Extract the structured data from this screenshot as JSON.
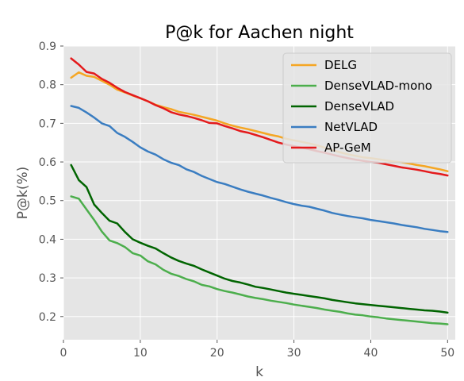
{
  "chart_data": {
    "type": "line",
    "title": "P@k for Aachen night",
    "xlabel": "k",
    "ylabel": "P@k(%)",
    "xlim": [
      0,
      51
    ],
    "ylim": [
      0.14,
      0.9
    ],
    "xticks": [
      0,
      10,
      20,
      30,
      40,
      50
    ],
    "yticks": [
      0.2,
      0.3,
      0.4,
      0.5,
      0.6,
      0.7,
      0.8,
      0.9
    ],
    "grid": true,
    "legend_position": "upper-right",
    "x": [
      1,
      2,
      3,
      4,
      5,
      6,
      7,
      8,
      9,
      10,
      11,
      12,
      13,
      14,
      15,
      16,
      17,
      18,
      19,
      20,
      21,
      22,
      23,
      24,
      25,
      26,
      27,
      28,
      29,
      30,
      31,
      32,
      33,
      34,
      35,
      36,
      37,
      38,
      39,
      40,
      41,
      42,
      43,
      44,
      45,
      46,
      47,
      48,
      49,
      50
    ],
    "series": [
      {
        "name": "DELG",
        "color": "#f5a623",
        "values": [
          0.818,
          0.832,
          0.823,
          0.82,
          0.81,
          0.8,
          0.787,
          0.78,
          0.772,
          0.765,
          0.757,
          0.748,
          0.742,
          0.737,
          0.73,
          0.726,
          0.722,
          0.717,
          0.712,
          0.707,
          0.7,
          0.694,
          0.689,
          0.685,
          0.68,
          0.675,
          0.67,
          0.666,
          0.66,
          0.656,
          0.652,
          0.648,
          0.643,
          0.637,
          0.631,
          0.625,
          0.62,
          0.616,
          0.612,
          0.61,
          0.607,
          0.604,
          0.601,
          0.599,
          0.596,
          0.592,
          0.589,
          0.585,
          0.581,
          0.576
        ]
      },
      {
        "name": "DenseVLAD-mono",
        "color": "#4cae4c",
        "values": [
          0.511,
          0.505,
          0.477,
          0.45,
          0.42,
          0.397,
          0.39,
          0.38,
          0.364,
          0.358,
          0.343,
          0.335,
          0.321,
          0.311,
          0.305,
          0.297,
          0.291,
          0.282,
          0.278,
          0.271,
          0.266,
          0.262,
          0.257,
          0.252,
          0.248,
          0.245,
          0.241,
          0.238,
          0.235,
          0.231,
          0.228,
          0.225,
          0.222,
          0.218,
          0.215,
          0.212,
          0.208,
          0.205,
          0.203,
          0.2,
          0.198,
          0.195,
          0.193,
          0.191,
          0.189,
          0.187,
          0.185,
          0.183,
          0.182,
          0.18
        ]
      },
      {
        "name": "DenseVLAD",
        "color": "#006400",
        "values": [
          0.592,
          0.553,
          0.535,
          0.49,
          0.468,
          0.448,
          0.441,
          0.419,
          0.4,
          0.391,
          0.383,
          0.376,
          0.364,
          0.353,
          0.344,
          0.337,
          0.331,
          0.322,
          0.314,
          0.306,
          0.298,
          0.292,
          0.288,
          0.283,
          0.277,
          0.274,
          0.27,
          0.266,
          0.262,
          0.259,
          0.256,
          0.253,
          0.25,
          0.247,
          0.243,
          0.24,
          0.237,
          0.234,
          0.232,
          0.23,
          0.228,
          0.226,
          0.224,
          0.222,
          0.22,
          0.218,
          0.216,
          0.215,
          0.213,
          0.21
        ]
      },
      {
        "name": "NetVLAD",
        "color": "#3a7dc1",
        "values": [
          0.745,
          0.74,
          0.728,
          0.715,
          0.7,
          0.693,
          0.675,
          0.665,
          0.652,
          0.638,
          0.627,
          0.619,
          0.607,
          0.598,
          0.592,
          0.581,
          0.574,
          0.564,
          0.556,
          0.548,
          0.543,
          0.536,
          0.529,
          0.523,
          0.518,
          0.513,
          0.507,
          0.502,
          0.496,
          0.491,
          0.487,
          0.484,
          0.479,
          0.474,
          0.468,
          0.464,
          0.46,
          0.457,
          0.454,
          0.45,
          0.447,
          0.444,
          0.441,
          0.437,
          0.434,
          0.431,
          0.427,
          0.424,
          0.421,
          0.419
        ]
      },
      {
        "name": "AP-GeM",
        "color": "#e41a1c",
        "values": [
          0.868,
          0.852,
          0.833,
          0.829,
          0.815,
          0.805,
          0.792,
          0.781,
          0.773,
          0.765,
          0.757,
          0.747,
          0.739,
          0.729,
          0.723,
          0.719,
          0.714,
          0.708,
          0.701,
          0.7,
          0.693,
          0.687,
          0.68,
          0.676,
          0.67,
          0.664,
          0.657,
          0.65,
          0.645,
          0.641,
          0.637,
          0.633,
          0.628,
          0.624,
          0.619,
          0.614,
          0.61,
          0.606,
          0.603,
          0.6,
          0.598,
          0.594,
          0.59,
          0.586,
          0.583,
          0.58,
          0.576,
          0.572,
          0.569,
          0.565
        ]
      }
    ]
  }
}
